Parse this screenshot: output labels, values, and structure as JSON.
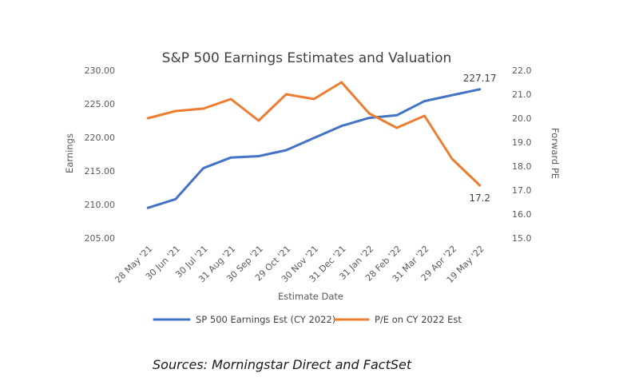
{
  "chart_data": {
    "type": "line",
    "title": "S&P 500 Earnings Estimates and Valuation",
    "xlabel": "Estimate Date",
    "ylabel": "Earnings",
    "y2label": "Forward PE",
    "categories": [
      "28 May '21",
      "30 Jun '21",
      "30 Jul '21",
      "31 Aug '21",
      "30 Sep '21",
      "29 Oct '21",
      "30 Nov '21",
      "31 Dec '21",
      "31 Jan '22",
      "28 Feb '22",
      "31 Mar '22",
      "29 Apr '22",
      "19 May '22"
    ],
    "ylim": [
      205,
      230
    ],
    "y2lim": [
      15,
      22
    ],
    "yticks": [
      "205.00",
      "210.00",
      "215.00",
      "220.00",
      "225.00",
      "230.00"
    ],
    "y2ticks": [
      "15.0",
      "16.0",
      "17.0",
      "18.0",
      "19.0",
      "20.0",
      "21.0",
      "22.0"
    ],
    "series": [
      {
        "name": "SP 500 Earnings Est (CY 2022)",
        "axis": "left",
        "color": "#4472C4",
        "values": [
          209.5,
          210.8,
          215.4,
          217.0,
          217.2,
          218.1,
          219.9,
          221.7,
          222.9,
          223.3,
          225.4,
          226.3,
          227.17
        ],
        "end_label": "227.17"
      },
      {
        "name": "P/E on CY 2022 Est",
        "axis": "right",
        "color": "#ED7D31",
        "values": [
          20.0,
          20.3,
          20.4,
          20.8,
          19.9,
          21.0,
          20.8,
          21.5,
          20.2,
          19.6,
          20.1,
          18.3,
          17.2
        ],
        "end_label": "17.2"
      }
    ],
    "grid": false,
    "legend_position": "bottom"
  },
  "source_note": "Sources: Morningstar Direct and FactSet"
}
